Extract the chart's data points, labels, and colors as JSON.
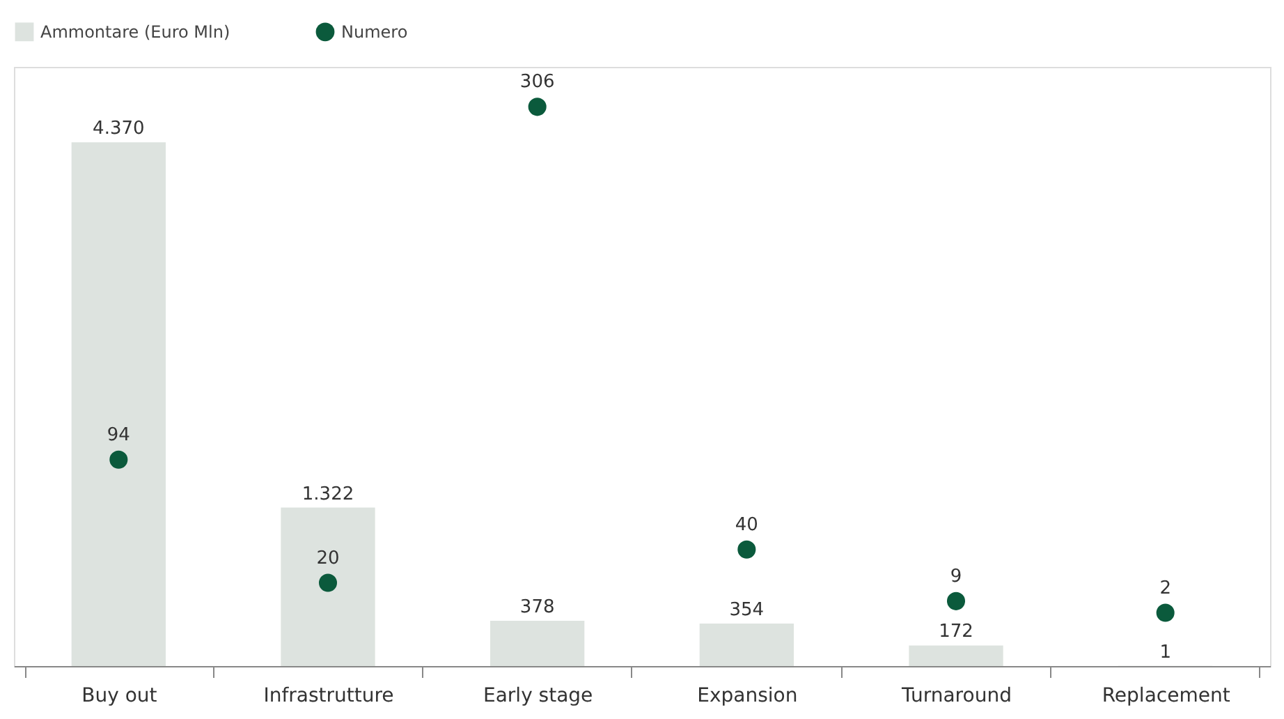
{
  "chart_data": {
    "type": "bar",
    "categories": [
      "Buy out",
      "Infrastrutture",
      "Early stage",
      "Expansion",
      "Turnaround",
      "Replacement"
    ],
    "series": [
      {
        "name": "Ammontare (Euro Mln)",
        "color": "#dde3df",
        "values": [
          4370,
          1322,
          378,
          354,
          172,
          1
        ],
        "value_labels": [
          "4.370",
          "1.322",
          "378",
          "354",
          "172",
          "1"
        ]
      },
      {
        "name": "Numero",
        "type": "scatter",
        "axis": "y2",
        "color": "#0b5a3c",
        "values": [
          94,
          20,
          306,
          40,
          9,
          2
        ],
        "value_labels": [
          "94",
          "20",
          "306",
          "40",
          "9",
          "2"
        ]
      }
    ],
    "ylim": [
      0,
      5000
    ],
    "y2lim": [
      -30,
      330
    ],
    "tick_labels": "x",
    "legend": "top",
    "marker": "circle",
    "grid": false
  }
}
